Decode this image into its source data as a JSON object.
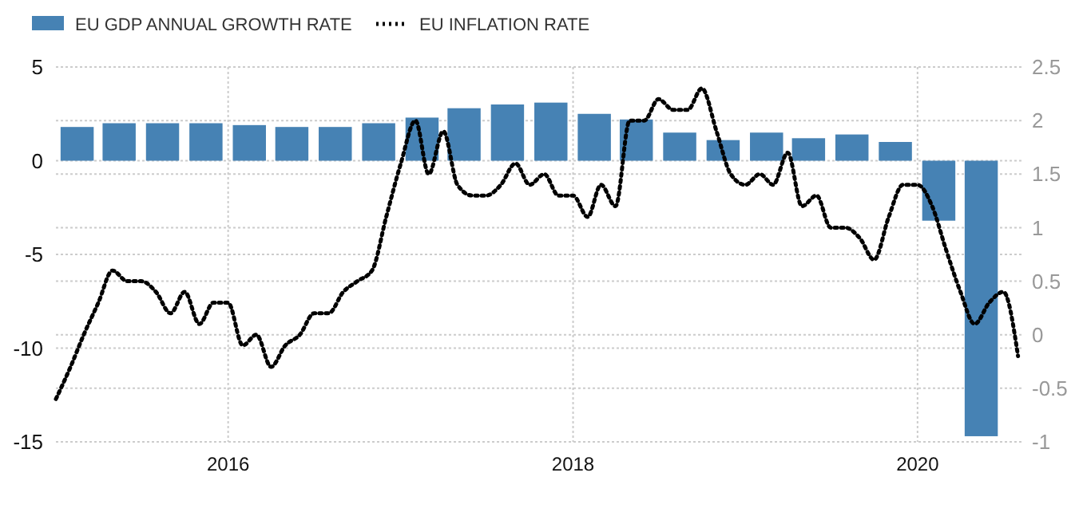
{
  "chart_data": {
    "type": "bar",
    "xlim": [
      "2015-01-01",
      "2020-08-10"
    ],
    "xticks": [
      "2016",
      "2018",
      "2020"
    ],
    "ylim": [
      -15,
      5
    ],
    "yticks": [
      -15,
      -10,
      -5,
      0,
      5
    ],
    "y2lim": [
      -1,
      2.5
    ],
    "y2ticks": [
      -1,
      -0.5,
      0,
      0.5,
      1,
      1.5,
      2,
      2.5
    ],
    "grid": true,
    "legend": "top left",
    "series": [
      {
        "name": "EU GDP ANNUAL GROWTH RATE",
        "color": "#4682b4",
        "x": [
          "2015-02-15",
          "2015-05-15",
          "2015-08-15",
          "2015-11-15",
          "2016-02-15",
          "2016-05-15",
          "2016-08-15",
          "2016-11-15",
          "2017-02-15",
          "2017-05-15",
          "2017-08-15",
          "2017-11-15",
          "2018-02-15",
          "2018-05-15",
          "2018-08-15",
          "2018-11-15",
          "2019-02-15",
          "2019-05-15",
          "2019-08-15",
          "2019-11-15",
          "2020-02-15",
          "2020-05-15"
        ],
        "values": [
          1.8,
          2.0,
          2.0,
          2.0,
          1.9,
          1.8,
          1.8,
          2.0,
          2.3,
          2.8,
          3.0,
          3.1,
          2.5,
          2.2,
          1.5,
          1.1,
          1.5,
          1.2,
          1.4,
          1.0,
          -3.2,
          -14.7
        ]
      },
      {
        "name": "EU INFLATION RATE",
        "type": "line",
        "axis": "y2",
        "color": "#000000",
        "line_style": "dotted",
        "x": [
          "2015-01",
          "2015-02",
          "2015-03",
          "2015-04",
          "2015-05",
          "2015-06",
          "2015-07",
          "2015-08",
          "2015-09",
          "2015-10",
          "2015-11",
          "2015-12",
          "2016-01",
          "2016-02",
          "2016-03",
          "2016-04",
          "2016-05",
          "2016-06",
          "2016-07",
          "2016-08",
          "2016-09",
          "2016-10",
          "2016-11",
          "2016-12",
          "2017-01",
          "2017-02",
          "2017-03",
          "2017-04",
          "2017-05",
          "2017-06",
          "2017-07",
          "2017-08",
          "2017-09",
          "2017-10",
          "2017-11",
          "2017-12",
          "2018-01",
          "2018-02",
          "2018-03",
          "2018-04",
          "2018-05",
          "2018-06",
          "2018-07",
          "2018-08",
          "2018-09",
          "2018-10",
          "2018-11",
          "2018-12",
          "2019-01",
          "2019-02",
          "2019-03",
          "2019-04",
          "2019-05",
          "2019-06",
          "2019-07",
          "2019-08",
          "2019-09",
          "2019-10",
          "2019-11",
          "2019-12",
          "2020-01",
          "2020-02",
          "2020-03",
          "2020-04",
          "2020-05",
          "2020-06",
          "2020-07",
          "2020-08"
        ],
        "values": [
          -0.6,
          -0.3,
          0.0,
          0.3,
          0.6,
          0.5,
          0.5,
          0.4,
          0.2,
          0.4,
          0.1,
          0.3,
          0.3,
          -0.1,
          0.0,
          -0.3,
          -0.1,
          0.0,
          0.2,
          0.2,
          0.4,
          0.5,
          0.6,
          1.1,
          1.6,
          2.0,
          1.5,
          1.9,
          1.4,
          1.3,
          1.3,
          1.4,
          1.6,
          1.4,
          1.5,
          1.3,
          1.3,
          1.1,
          1.4,
          1.2,
          2.0,
          2.0,
          2.2,
          2.1,
          2.1,
          2.3,
          1.9,
          1.5,
          1.4,
          1.5,
          1.4,
          1.7,
          1.2,
          1.3,
          1.0,
          1.0,
          0.9,
          0.7,
          1.1,
          1.4,
          1.4,
          1.2,
          0.8,
          0.4,
          0.1,
          0.3,
          0.4,
          -0.2
        ]
      }
    ]
  }
}
